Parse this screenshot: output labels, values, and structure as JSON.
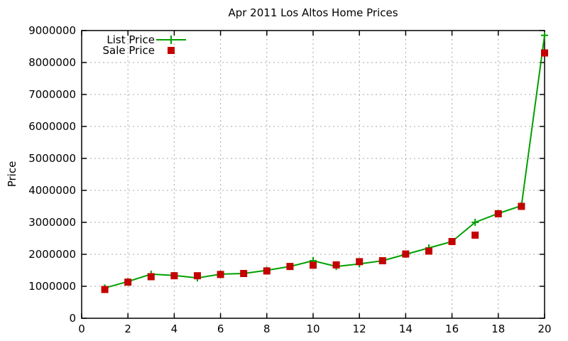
{
  "title": "Apr 2011 Los Altos Home Prices",
  "chart_data": {
    "type": "line",
    "title": "Apr 2011 Los Altos Home Prices",
    "xlabel": "",
    "ylabel": "Price",
    "xlim": [
      0,
      20
    ],
    "ylim": [
      0,
      9000000
    ],
    "grid": true,
    "legend_position": "top-left-inside",
    "x_ticks": [
      0,
      2,
      4,
      6,
      8,
      10,
      12,
      14,
      16,
      18,
      20
    ],
    "x_tick_labels": [
      "0",
      "2",
      "4",
      "6",
      "8",
      "10",
      "12",
      "14",
      "16",
      "18",
      "20"
    ],
    "y_ticks": [
      0,
      1000000,
      2000000,
      3000000,
      4000000,
      5000000,
      6000000,
      7000000,
      8000000,
      9000000
    ],
    "y_tick_labels": [
      "0",
      "1000000",
      "2000000",
      "3000000",
      "4000000",
      "5000000",
      "6000000",
      "7000000",
      "8000000",
      "9000000"
    ],
    "x": [
      1,
      2,
      3,
      4,
      5,
      6,
      7,
      8,
      9,
      10,
      11,
      12,
      13,
      14,
      15,
      16,
      17,
      18,
      19,
      20
    ],
    "series": [
      {
        "name": "List Price",
        "marker": "plus",
        "draw_line": true,
        "color": "#00a000",
        "values": [
          950000,
          1150000,
          1380000,
          1340000,
          1260000,
          1380000,
          1400000,
          1500000,
          1620000,
          1800000,
          1620000,
          1700000,
          1800000,
          2000000,
          2200000,
          2400000,
          3000000,
          3280000,
          3520000,
          8850000
        ]
      },
      {
        "name": "Sale Price",
        "marker": "square",
        "draw_line": false,
        "color": "#c40000",
        "values": [
          900000,
          1130000,
          1300000,
          1330000,
          1330000,
          1370000,
          1400000,
          1480000,
          1620000,
          1660000,
          1670000,
          1770000,
          1800000,
          2010000,
          2100000,
          2400000,
          2600000,
          3270000,
          3500000,
          8300000
        ]
      }
    ]
  },
  "colors": {
    "grid": "#a8a8a8",
    "axis": "#000000",
    "background": "#ffffff"
  }
}
